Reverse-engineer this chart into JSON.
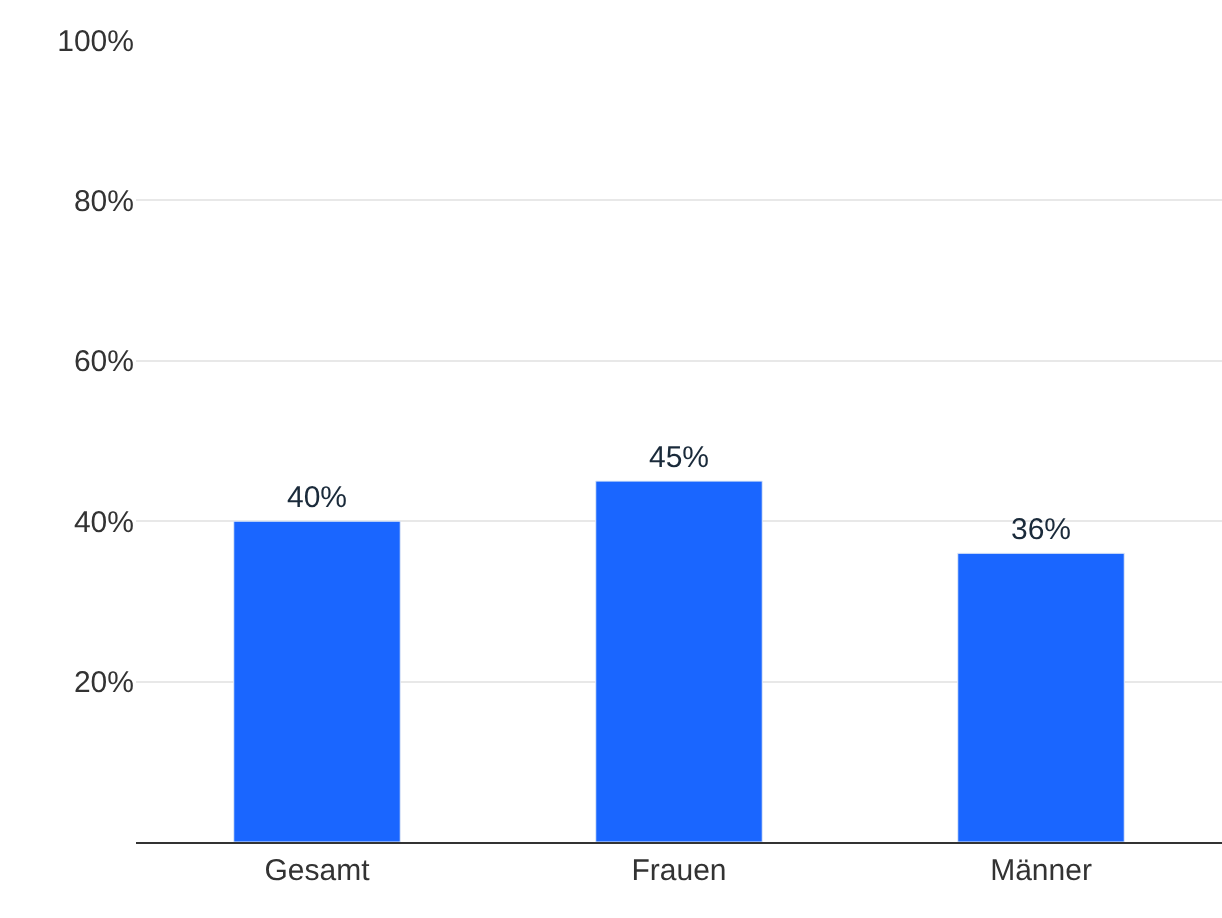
{
  "chart_data": {
    "type": "bar",
    "categories": [
      "Gesamt",
      "Frauen",
      "Männer"
    ],
    "values": [
      40,
      45,
      36
    ],
    "value_labels": [
      "40%",
      "45%",
      "36%"
    ],
    "color": "#1a66ff",
    "ylim": [
      0,
      100
    ],
    "yticks": [
      {
        "value": 20,
        "label": "20%"
      },
      {
        "value": 40,
        "label": "40%"
      },
      {
        "value": 60,
        "label": "60%"
      },
      {
        "value": 80,
        "label": "80%"
      },
      {
        "value": 100,
        "label": "100%"
      }
    ],
    "grid": "y",
    "legend": false
  }
}
